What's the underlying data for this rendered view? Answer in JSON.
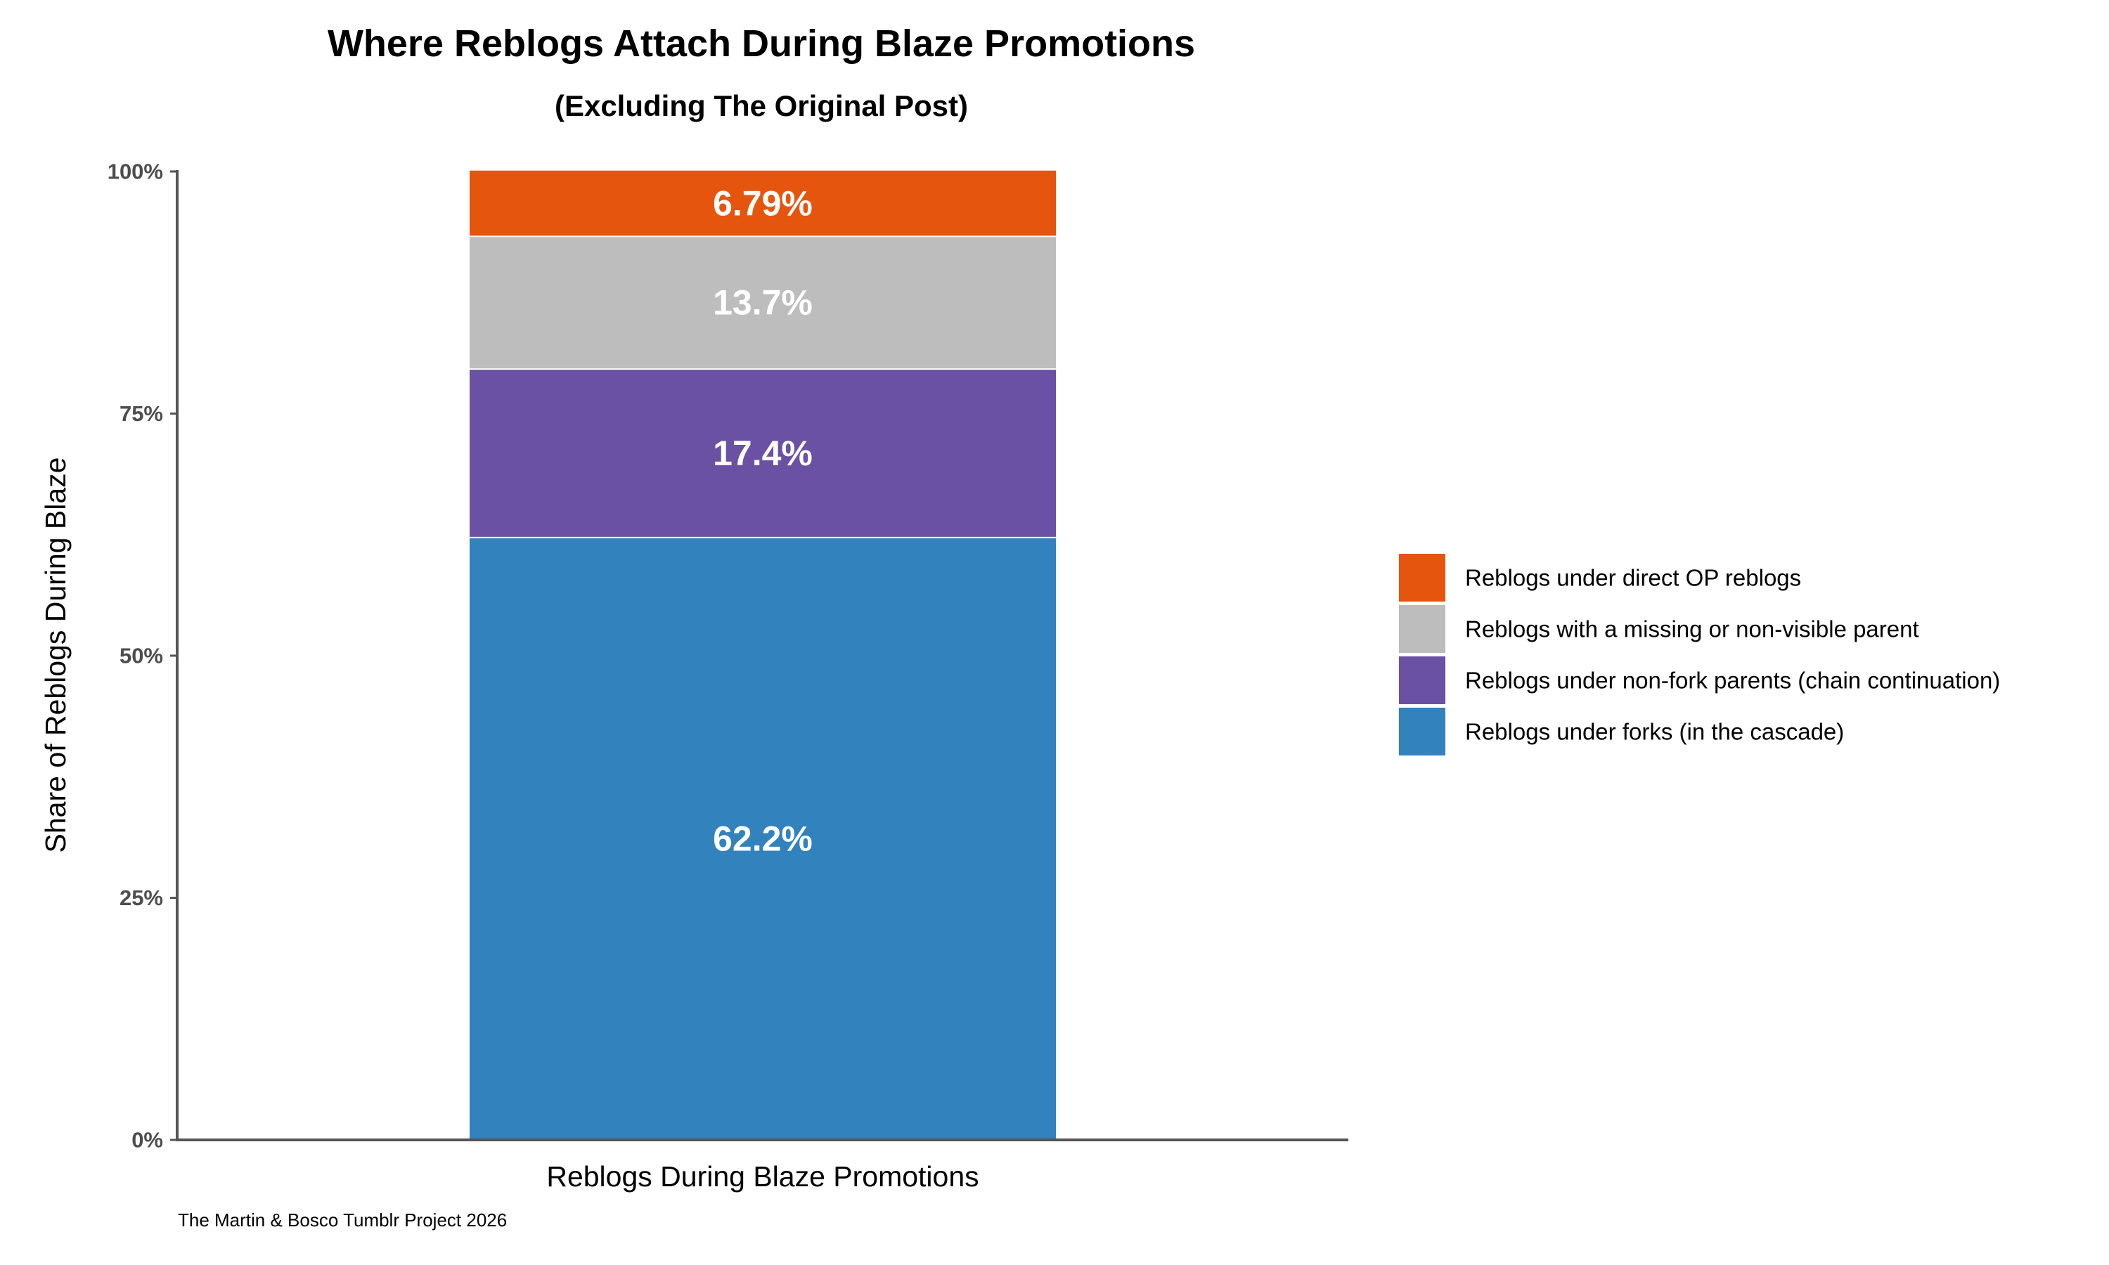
{
  "chart_data": {
    "type": "bar",
    "stacked": true,
    "title": "Where Reblogs Attach During Blaze Promotions",
    "subtitle": "(Excluding The Original Post)",
    "xlabel": "Reblogs During Blaze Promotions",
    "ylabel": "Share of Reblogs During Blaze",
    "caption": "The Martin & Bosco Tumblr Project 2026",
    "categories": [
      "Reblogs During Blaze Promotions"
    ],
    "ylim": [
      0,
      100
    ],
    "y_ticks": [
      "0%",
      "25%",
      "50%",
      "75%",
      "100%"
    ],
    "grid": false,
    "legend_position": "right",
    "series": [
      {
        "name": "Reblogs under forks (in the cascade)",
        "values": [
          62.2
        ],
        "label": "62.2%",
        "color": "#3182bd"
      },
      {
        "name": "Reblogs under non-fork parents (chain continuation)",
        "values": [
          17.4
        ],
        "label": "17.4%",
        "color": "#6a51a3"
      },
      {
        "name": "Reblogs with a missing or non-visible parent",
        "values": [
          13.7
        ],
        "label": "13.7%",
        "color": "#bdbdbd"
      },
      {
        "name": "Reblogs under direct OP reblogs",
        "values": [
          6.79
        ],
        "label": "6.79%",
        "color": "#e6550d"
      }
    ]
  }
}
